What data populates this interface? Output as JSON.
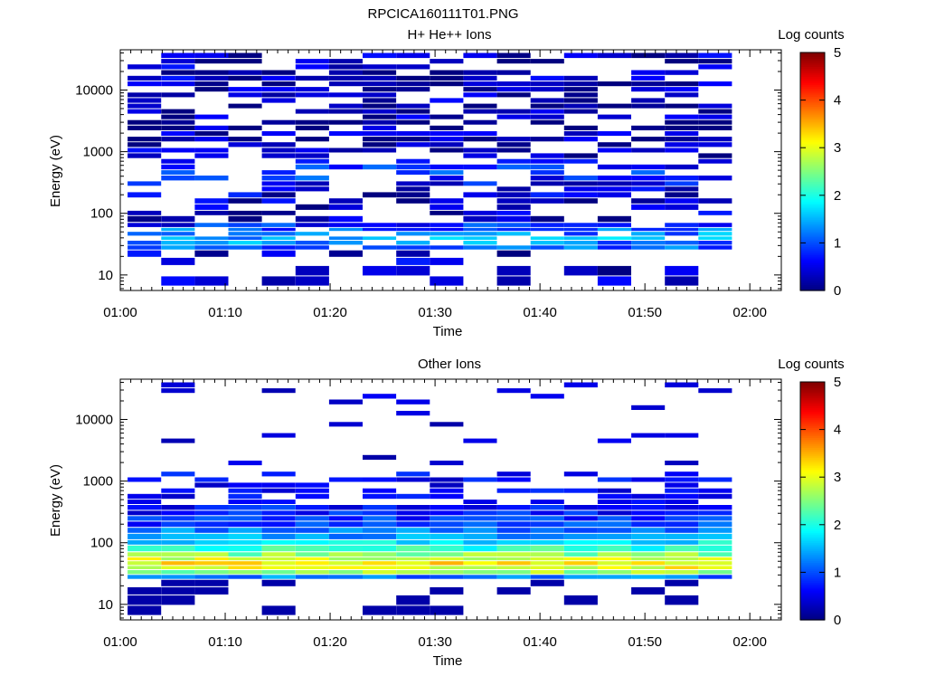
{
  "figure": {
    "filename": "RPCICA160111T01.PNG"
  },
  "colorbar": {
    "label": "Log counts",
    "ticks": [
      0,
      1,
      2,
      3,
      4,
      5
    ],
    "range": [
      0,
      5
    ],
    "colormap": [
      "#00007f",
      "#0000ff",
      "#007fff",
      "#00ffff",
      "#7fff7f",
      "#ffff00",
      "#ff7f00",
      "#ff0000",
      "#7f0000"
    ]
  },
  "chart_data": [
    {
      "type": "heatmap",
      "title": "H+ He++ Ions",
      "xlabel": "Time",
      "ylabel": "Energy (eV)",
      "x_ticks": [
        "01:00",
        "01:10",
        "01:20",
        "01:30",
        "01:40",
        "01:50",
        "02:00"
      ],
      "x_range_minutes": [
        0,
        63
      ],
      "y_scale": "log",
      "y_range": [
        5.6,
        45000
      ],
      "y_ticks": [
        10,
        100,
        1000,
        10000
      ],
      "y_tick_labels": [
        "10",
        "100",
        "1000",
        "10000"
      ],
      "time_bins_minutes": [
        2.3,
        5.5,
        8.7,
        11.9,
        15.1,
        18.3,
        21.5,
        24.7,
        27.9,
        31.1,
        34.3,
        37.5,
        40.7,
        43.9,
        47.1,
        50.3,
        53.5,
        56.7
      ],
      "energy_bins_eV": [
        [
          6.5,
          9.5,
          0.4
        ],
        [
          9.5,
          14,
          0.4
        ],
        [
          14,
          19,
          0.4
        ],
        [
          19,
          25,
          0.4
        ],
        [
          25,
          30,
          0.6
        ],
        [
          30,
          36,
          0.8
        ],
        [
          36,
          42,
          0.9
        ],
        [
          42,
          50,
          0.8
        ],
        [
          50,
          58,
          0.6
        ],
        [
          58,
          70,
          0.3
        ],
        [
          70,
          90,
          0.2
        ],
        [
          90,
          110,
          0.3
        ],
        [
          110,
          140,
          0.3
        ],
        [
          140,
          175,
          0.3
        ],
        [
          175,
          220,
          0.4
        ],
        [
          220,
          270,
          0.5
        ],
        [
          270,
          330,
          0.6
        ],
        [
          330,
          410,
          0.8
        ],
        [
          410,
          500,
          1.2
        ],
        [
          500,
          620,
          0.8
        ],
        [
          620,
          760,
          0.5
        ],
        [
          760,
          940,
          0.4
        ],
        [
          940,
          1150,
          0.3
        ],
        [
          1150,
          1420,
          0.3
        ],
        [
          1420,
          1750,
          0.2
        ],
        [
          1750,
          2150,
          0.3
        ],
        [
          2150,
          2650,
          0.2
        ],
        [
          2650,
          3250,
          0.2
        ],
        [
          3250,
          4000,
          0.3
        ],
        [
          4000,
          4900,
          0.2
        ],
        [
          4900,
          6000,
          0.2
        ],
        [
          6000,
          7400,
          0.3
        ],
        [
          7400,
          9100,
          0.2
        ],
        [
          9100,
          11200,
          0.3
        ],
        [
          11200,
          13800,
          0.2
        ],
        [
          13800,
          17000,
          0.3
        ],
        [
          17000,
          21000,
          0.2
        ],
        [
          21000,
          26000,
          0.3
        ],
        [
          26000,
          32000,
          0.2
        ],
        [
          32000,
          40000,
          0.3
        ]
      ],
      "notes": "log counts per energy bin: [low_eV, high_eV, typical log counts]; many bins are empty (white)"
    },
    {
      "type": "heatmap",
      "title": "Other Ions",
      "xlabel": "Time",
      "ylabel": "Energy (eV)",
      "x_ticks": [
        "01:00",
        "01:10",
        "01:20",
        "01:30",
        "01:40",
        "01:50",
        "02:00"
      ],
      "x_range_minutes": [
        0,
        63
      ],
      "y_scale": "log",
      "y_range": [
        5.6,
        45000
      ],
      "y_ticks": [
        10,
        100,
        1000,
        10000
      ],
      "y_tick_labels": [
        "10",
        "100",
        "1000",
        "10000"
      ],
      "time_bins_minutes": [
        2.3,
        5.5,
        8.7,
        11.9,
        15.1,
        18.3,
        21.5,
        24.7,
        27.9,
        31.1,
        34.3,
        37.5,
        40.7,
        43.9,
        47.1,
        50.3,
        53.5,
        56.7
      ],
      "energy_bins_eV": [
        [
          6.5,
          9.5,
          0.2
        ],
        [
          9.5,
          14,
          0.2
        ],
        [
          14,
          19,
          0.2
        ],
        [
          19,
          25,
          0.3
        ],
        [
          25,
          30,
          1.2
        ],
        [
          30,
          36,
          2.6
        ],
        [
          36,
          42,
          3.0
        ],
        [
          42,
          50,
          3.2
        ],
        [
          50,
          58,
          2.9
        ],
        [
          58,
          70,
          2.5
        ],
        [
          70,
          90,
          2.1
        ],
        [
          90,
          110,
          1.8
        ],
        [
          110,
          140,
          1.4
        ],
        [
          140,
          175,
          1.2
        ],
        [
          175,
          220,
          0.9
        ],
        [
          220,
          270,
          0.8
        ],
        [
          270,
          330,
          0.7
        ],
        [
          330,
          410,
          0.7
        ],
        [
          410,
          500,
          0.6
        ],
        [
          500,
          620,
          0.4
        ],
        [
          620,
          760,
          0.3
        ],
        [
          760,
          940,
          0.2
        ],
        [
          940,
          1150,
          0.2
        ],
        [
          1150,
          1420,
          0.1
        ],
        [
          1420,
          1750,
          0.1
        ],
        [
          1750,
          2150,
          0.0
        ],
        [
          2150,
          2650,
          0.0
        ],
        [
          2650,
          3250,
          0.1
        ],
        [
          3250,
          4000,
          0.1
        ],
        [
          4000,
          4900,
          0.0
        ],
        [
          4900,
          6000,
          0.0
        ],
        [
          6000,
          7400,
          0.0
        ],
        [
          7400,
          9100,
          0.0
        ],
        [
          9100,
          11200,
          0.0
        ],
        [
          11200,
          13800,
          0.0
        ],
        [
          13800,
          17000,
          0.0
        ],
        [
          17000,
          21000,
          0.0
        ],
        [
          21000,
          26000,
          0.0
        ],
        [
          26000,
          32000,
          0.0
        ],
        [
          32000,
          40000,
          0.0
        ]
      ],
      "notes": "peak log counts ~3.2 near 40-50 eV; sparse bins above 1000 eV"
    }
  ]
}
